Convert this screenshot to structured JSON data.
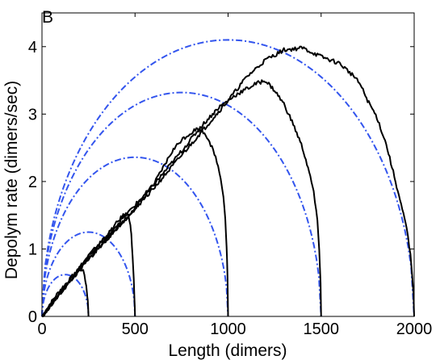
{
  "chart_data": {
    "type": "line",
    "panel_label": "B",
    "title": "",
    "xlabel": "Length (dimers)",
    "ylabel": "Depolym rate (dimers/sec)",
    "xlim": [
      0,
      2000
    ],
    "ylim": [
      0,
      4.5
    ],
    "xticks": [
      0,
      500,
      1000,
      1500,
      2000
    ],
    "yticks": [
      0,
      1,
      2,
      3,
      4
    ],
    "grid": false,
    "legend": "none",
    "colors": {
      "simulation": "#000000",
      "theory": "#3355ee"
    },
    "theory_curves": [
      {
        "L": 250,
        "peak_rate": 0.62
      },
      {
        "L": 500,
        "peak_rate": 1.25
      },
      {
        "L": 1000,
        "peak_rate": 2.36
      },
      {
        "L": 1500,
        "peak_rate": 3.32
      },
      {
        "L": 2000,
        "peak_rate": 4.1
      }
    ],
    "series": [
      {
        "L": 250,
        "x": [
          0,
          20,
          60,
          100,
          150,
          190,
          215,
          228,
          238,
          244,
          248,
          250
        ],
        "y": [
          0,
          0.08,
          0.25,
          0.4,
          0.55,
          0.66,
          0.7,
          0.62,
          0.45,
          0.3,
          0.15,
          0
        ]
      },
      {
        "L": 500,
        "x": [
          0,
          50,
          100,
          150,
          200,
          250,
          300,
          350,
          400,
          430,
          450,
          465,
          475,
          480,
          487,
          493,
          497,
          500
        ],
        "y": [
          0,
          0.18,
          0.35,
          0.52,
          0.72,
          0.9,
          1.05,
          1.2,
          1.38,
          1.48,
          1.52,
          1.5,
          1.38,
          1.2,
          0.9,
          0.55,
          0.25,
          0
        ]
      },
      {
        "L": 1000,
        "x": [
          0,
          100,
          200,
          300,
          400,
          500,
          600,
          650,
          700,
          750,
          800,
          830,
          860,
          880,
          900,
          920,
          940,
          960,
          975,
          985,
          992,
          997,
          1000
        ],
        "y": [
          0,
          0.35,
          0.68,
          1.0,
          1.3,
          1.6,
          1.95,
          2.2,
          2.45,
          2.62,
          2.72,
          2.78,
          2.75,
          2.7,
          2.6,
          2.45,
          2.3,
          2.05,
          1.8,
          1.45,
          1.05,
          0.6,
          0
        ]
      },
      {
        "L": 1500,
        "x": [
          0,
          150,
          300,
          450,
          600,
          750,
          850,
          950,
          1050,
          1150,
          1200,
          1250,
          1300,
          1350,
          1400,
          1430,
          1460,
          1480,
          1490,
          1497,
          1500
        ],
        "y": [
          0,
          0.55,
          1.05,
          1.5,
          1.95,
          2.45,
          2.8,
          3.1,
          3.3,
          3.45,
          3.5,
          3.35,
          3.15,
          2.85,
          2.5,
          2.2,
          1.85,
          1.4,
          1.0,
          0.5,
          0
        ]
      },
      {
        "L": 2000,
        "x": [
          0,
          200,
          400,
          600,
          800,
          1000,
          1100,
          1200,
          1300,
          1400,
          1500,
          1600,
          1700,
          1750,
          1800,
          1850,
          1900,
          1930,
          1960,
          1980,
          1990,
          1997,
          2000
        ],
        "y": [
          0,
          0.7,
          1.3,
          1.9,
          2.55,
          3.2,
          3.55,
          3.8,
          3.95,
          3.98,
          3.85,
          3.75,
          3.5,
          3.2,
          2.95,
          2.55,
          2.0,
          1.65,
          1.3,
          0.9,
          0.6,
          0.3,
          0
        ]
      }
    ]
  }
}
